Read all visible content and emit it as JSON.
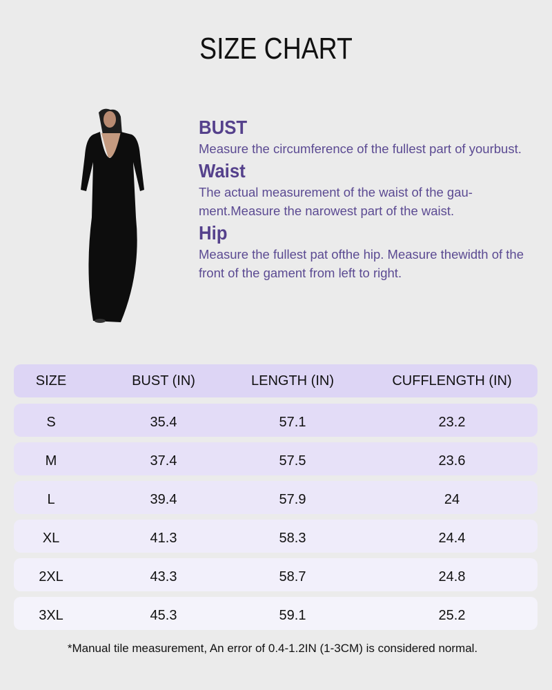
{
  "title": "SIZE CHART",
  "measurements": [
    {
      "heading": "BUST",
      "text": "Measure the circumference of the fullest part of yourbust."
    },
    {
      "heading": "Waist",
      "text": "The actual measurement of the waist of the gau-ment.Measure the narowest part of the waist."
    },
    {
      "heading": "Hip",
      "text": "Measure the fullest pat ofthe hip. Measure thewidth of the front of the gament from left to right."
    }
  ],
  "table": {
    "headers": [
      "SIZE",
      "BUST (IN)",
      "LENGTH (IN)",
      "CUFFLENGTH (IN)"
    ],
    "rows": [
      [
        "S",
        "35.4",
        "57.1",
        "23.2"
      ],
      [
        "M",
        "37.4",
        "57.5",
        "23.6"
      ],
      [
        "L",
        "39.4",
        "57.9",
        "24"
      ],
      [
        "XL",
        "41.3",
        "58.3",
        "24.4"
      ],
      [
        "2XL",
        "43.3",
        "58.7",
        "24.8"
      ],
      [
        "3XL",
        "45.3",
        "59.1",
        "25.2"
      ]
    ],
    "header_color": "#ddd5f5",
    "row_colors": [
      "#e3dcf7",
      "#e7e1f8",
      "#ebe7f9",
      "#efecfa",
      "#f2f0fb",
      "#f4f3fb"
    ]
  },
  "footnote": "*Manual tile measurement, An error of 0.4-1.2IN (1-3CM) is considered normal."
}
